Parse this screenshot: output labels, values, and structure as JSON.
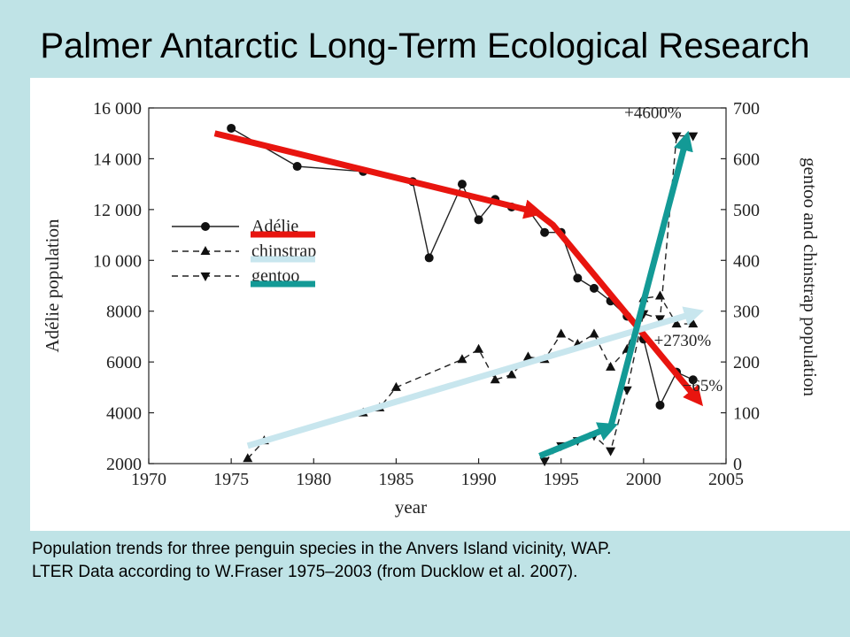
{
  "slide": {
    "title": "Palmer Antarctic Long-Term Ecological Research",
    "caption_line1": "Population trends for three penguin species in the Anvers Island vicinity, WAP.",
    "caption_line2": "LTER Data according to W.Fraser 1975–2003 (from Ducklow et al. 2007)."
  },
  "chart_data": {
    "type": "line",
    "title": "",
    "xlabel": "year",
    "ylabel_left": "Adélie population",
    "ylabel_right": "gentoo and chinstrap population",
    "xlim": [
      1970,
      2005
    ],
    "ylim_left": [
      2000,
      16000
    ],
    "ylim_right": [
      0,
      700
    ],
    "x_ticks": [
      "1970",
      "1975",
      "1980",
      "1985",
      "1990",
      "1995",
      "2000",
      "2005"
    ],
    "y_ticks_left": [
      "2000",
      "4000",
      "6000",
      "8000",
      "10 000",
      "12 000",
      "14 000",
      "16 000"
    ],
    "y_ticks_right": [
      "0",
      "100",
      "200",
      "300",
      "400",
      "500",
      "600",
      "700"
    ],
    "legend_position": "upper-left",
    "grid": false,
    "series": [
      {
        "name": "Adélie",
        "axis": "left",
        "marker": "circle",
        "line_style": "solid",
        "highlight_color": "#e8150f",
        "x": [
          1975,
          1979,
          1983,
          1986,
          1987,
          1989,
          1990,
          1991,
          1992,
          1993,
          1994,
          1995,
          1996,
          1997,
          1998,
          1999,
          2000,
          2001,
          2002,
          2003
        ],
        "y": [
          15200,
          13700,
          13500,
          13100,
          10100,
          13000,
          11600,
          12400,
          12100,
          12000,
          11100,
          11100,
          9300,
          8900,
          8400,
          7800,
          6900,
          4300,
          5600,
          5300
        ]
      },
      {
        "name": "chinstrap",
        "axis": "right",
        "marker": "triangle-up",
        "line_style": "dashed",
        "highlight_color": "#c8e6ee",
        "x": [
          1976,
          1977,
          1983,
          1984,
          1985,
          1989,
          1990,
          1991,
          1992,
          1993,
          1994,
          1995,
          1996,
          1997,
          1998,
          1999,
          2000,
          2001,
          2002,
          2003
        ],
        "y": [
          10,
          45,
          100,
          110,
          150,
          205,
          225,
          165,
          175,
          210,
          205,
          255,
          235,
          255,
          190,
          225,
          325,
          330,
          275,
          275
        ]
      },
      {
        "name": "gentoo",
        "axis": "right",
        "marker": "triangle-down",
        "line_style": "dashed",
        "highlight_color": "#139a96",
        "x": [
          1994,
          1995,
          1996,
          1997,
          1998,
          1999,
          2000,
          2001,
          2002,
          2003
        ],
        "y": [
          5,
          35,
          45,
          55,
          25,
          145,
          295,
          285,
          645,
          645
        ]
      }
    ],
    "annotations": [
      "+4600%",
      "+2730%",
      "−65%"
    ],
    "trend_arrows": [
      {
        "series": "Adélie",
        "color": "#e8150f",
        "points": [
          [
            1974,
            15000
          ],
          [
            1993.5,
            11900
          ]
        ]
      },
      {
        "series": "Adélie",
        "color": "#e8150f",
        "points": [
          [
            1993.5,
            11900
          ],
          [
            1994.5,
            11400
          ],
          [
            2003.3,
            4500
          ]
        ]
      },
      {
        "series": "chinstrap",
        "color": "#c8e6ee",
        "points": [
          [
            1976,
            35
          ],
          [
            2003.2,
            297
          ]
        ]
      },
      {
        "series": "gentoo",
        "color": "#139a96",
        "points": [
          [
            1993.7,
            15
          ],
          [
            1998,
            72
          ]
        ]
      },
      {
        "series": "gentoo",
        "color": "#139a96",
        "points": [
          [
            1998,
            72
          ],
          [
            2002.6,
            640
          ]
        ]
      }
    ]
  }
}
